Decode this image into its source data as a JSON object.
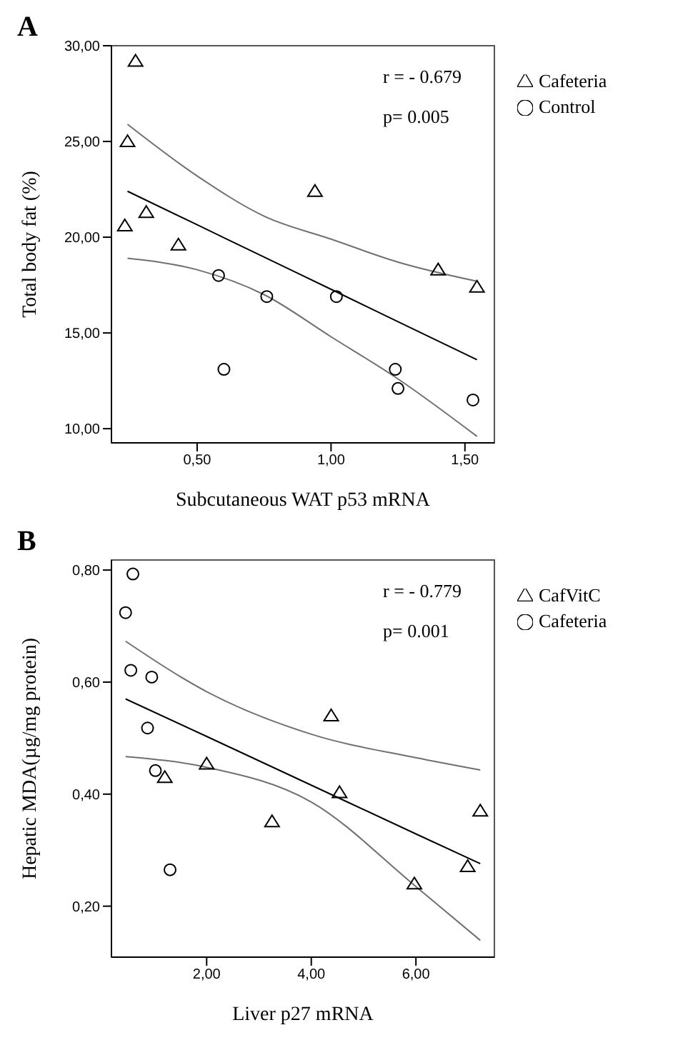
{
  "chart_data": [
    {
      "type": "scatter",
      "title": "A",
      "xlabel": "Subcutaneous WAT p53 mRNA",
      "ylabel": "Total body fat (%)",
      "annotations": [
        "r = - 0.679",
        "p= 0.005"
      ],
      "xlim": [
        0.18,
        1.61
      ],
      "ylim": [
        9.26,
        30
      ],
      "xticks": [
        {
          "value": 0.5,
          "label": "0,50"
        },
        {
          "value": 1,
          "label": "1,00"
        },
        {
          "value": 1.5,
          "label": "1,50"
        }
      ],
      "yticks": [
        {
          "value": 10,
          "label": "10,00"
        },
        {
          "value": 15,
          "label": "15,00"
        },
        {
          "value": 20,
          "label": "20,00"
        },
        {
          "value": 25,
          "label": "25,00"
        },
        {
          "value": 30,
          "label": "30,00"
        }
      ],
      "grid": false,
      "legend": "top right",
      "series": [
        {
          "name": "Control",
          "marker": "circle",
          "color": "#000000",
          "x": [
            0.58,
            0.6,
            0.76,
            1.02,
            1.24,
            1.25,
            1.53
          ],
          "values": [
            18.0,
            13.1,
            16.9,
            16.9,
            13.1,
            12.1,
            11.5
          ]
        },
        {
          "name": "Cafeteria",
          "marker": "triangle",
          "color": "#000000",
          "x": [
            0.27,
            0.24,
            0.23,
            0.31,
            0.43,
            0.94,
            1.4,
            1.545
          ],
          "values": [
            29.2,
            25.0,
            20.6,
            21.3,
            19.6,
            22.4,
            18.3,
            17.4
          ]
        },
        {
          "type": "line",
          "color": "#000000",
          "x": [
            0.24,
            0.5,
            0.75,
            1.0,
            1.25,
            1.545
          ],
          "values": [
            22.4,
            20.65,
            18.96,
            17.28,
            15.59,
            13.6
          ]
        },
        {
          "type": "line",
          "color": "#707070",
          "x": [
            0.24,
            0.5,
            0.75,
            1.0,
            1.25,
            1.545
          ],
          "values": [
            25.9,
            23.2,
            21.1,
            19.9,
            18.7,
            17.7
          ]
        },
        {
          "type": "line",
          "color": "#707070",
          "x": [
            0.24,
            0.5,
            0.75,
            1.0,
            1.25,
            1.545
          ],
          "values": [
            18.9,
            18.3,
            17.0,
            14.8,
            12.6,
            9.6
          ]
        }
      ]
    },
    {
      "type": "scatter",
      "title": "B",
      "xlabel": "Liver p27 mRNA",
      "ylabel": "Hepatic MDA(µg/mg protein)",
      "annotations": [
        "r = - 0.779",
        "p=  0.001"
      ],
      "xlim": [
        0.18,
        7.5
      ],
      "ylim": [
        0.109,
        0.818
      ],
      "xticks": [
        {
          "value": 2,
          "label": "2,00"
        },
        {
          "value": 4,
          "label": "4,00"
        },
        {
          "value": 6,
          "label": "6,00"
        }
      ],
      "yticks": [
        {
          "value": 0.2,
          "label": "0,20"
        },
        {
          "value": 0.4,
          "label": "0,40"
        },
        {
          "value": 0.6,
          "label": "0,60"
        },
        {
          "value": 0.8,
          "label": "0,80"
        }
      ],
      "grid": false,
      "legend": "top right",
      "series": [
        {
          "name": "Cafeteria",
          "marker": "circle",
          "color": "#000000",
          "x": [
            0.59,
            0.45,
            0.55,
            0.95,
            0.87,
            1.02,
            1.3
          ],
          "values": [
            0.793,
            0.724,
            0.621,
            0.609,
            0.518,
            0.442,
            0.265
          ]
        },
        {
          "name": "CafVitC",
          "marker": "triangle",
          "color": "#000000",
          "x": [
            1.2,
            2.0,
            3.25,
            4.38,
            4.54,
            5.97,
            7.23,
            6.99
          ],
          "values": [
            0.43,
            0.454,
            0.351,
            0.54,
            0.403,
            0.24,
            0.37,
            0.271
          ]
        },
        {
          "type": "line",
          "color": "#000000",
          "x": [
            0.45,
            2,
            4,
            6,
            7.23
          ],
          "values": [
            0.57,
            0.503,
            0.416,
            0.329,
            0.276
          ]
        },
        {
          "type": "line",
          "color": "#707070",
          "x": [
            0.45,
            2,
            4,
            6,
            7.23
          ],
          "values": [
            0.673,
            0.583,
            0.507,
            0.465,
            0.443
          ]
        },
        {
          "type": "line",
          "color": "#707070",
          "x": [
            0.45,
            2,
            4,
            6,
            7.23
          ],
          "values": [
            0.467,
            0.448,
            0.386,
            0.235,
            0.139
          ]
        }
      ]
    }
  ]
}
